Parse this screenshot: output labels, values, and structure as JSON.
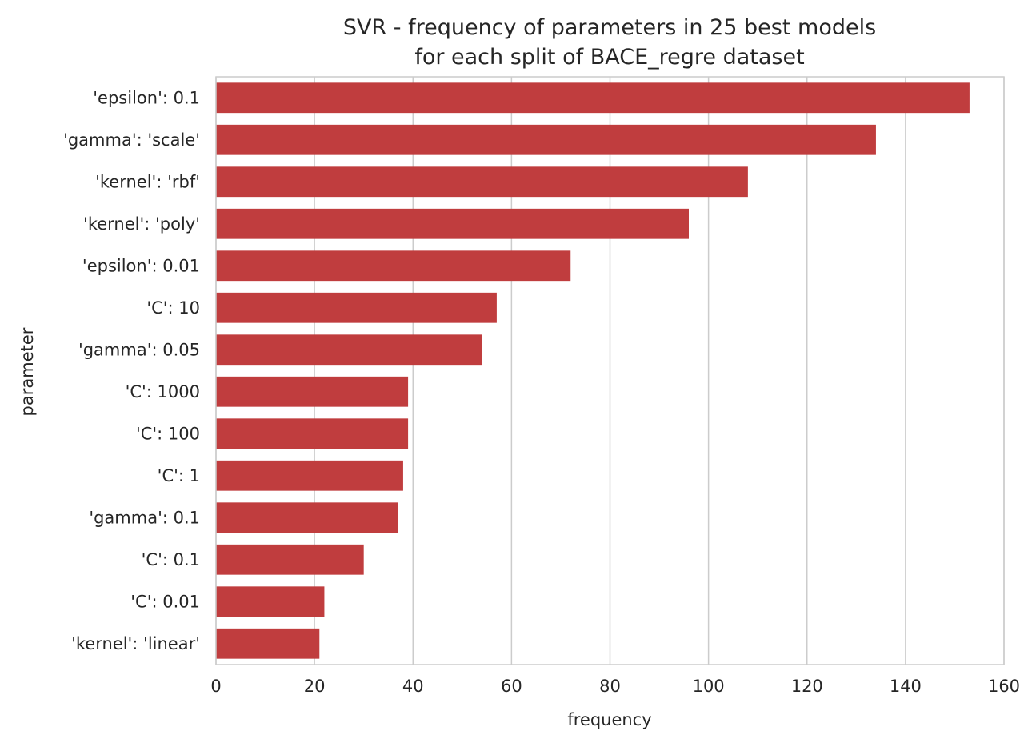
{
  "chart_data": {
    "type": "bar",
    "orientation": "horizontal",
    "title": "SVR - frequency of parameters in 25 best models",
    "subtitle": "for each split of BACE_regre dataset",
    "xlabel": "frequency",
    "ylabel": "parameter",
    "xlim": [
      0,
      160
    ],
    "xticks": [
      0,
      20,
      40,
      60,
      80,
      100,
      120,
      140,
      160
    ],
    "grid": "vertical",
    "bar_color": "#c03d3e",
    "categories": [
      "'epsilon': 0.1",
      "'gamma': 'scale'",
      "'kernel': 'rbf'",
      "'kernel': 'poly'",
      "'epsilon': 0.01",
      "'C': 10",
      "'gamma': 0.05",
      "'C': 1000",
      "'C': 100",
      "'C': 1",
      "'gamma': 0.1",
      "'C': 0.1",
      "'C': 0.01",
      "'kernel': 'linear'"
    ],
    "values": [
      153,
      134,
      108,
      96,
      72,
      57,
      54,
      39,
      39,
      38,
      37,
      30,
      22,
      21
    ]
  }
}
